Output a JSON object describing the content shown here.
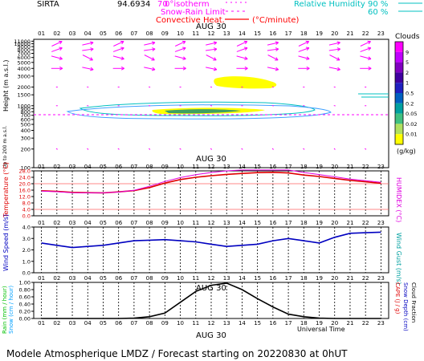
{
  "header": {
    "station": "SIRTA",
    "coords": "94.6934",
    "isotherm_value": "70",
    "legend_isotherm": "0°isotherm",
    "legend_snow_rain": "Snow-Rain Limit",
    "legend_convective": "Convective Heat.",
    "legend_convective_unit": "(°C/minute)",
    "legend_rh": "Relative Humidity",
    "rh_90": "90 %",
    "rh_60": "60 %",
    "date": "AUG 30"
  },
  "footer": {
    "text": "Modele Atmospherique LMDZ / Forecast starting on 20220830 at 0hUT",
    "universal_time": "Universal Time",
    "date_bottom": "AUG 30"
  },
  "colors": {
    "temperature": "#e00000",
    "humidex": "#e000e0",
    "wind": "#0000c0",
    "rain": "#000000",
    "clouds_title": "#000000",
    "wind_arrows": "#ff00ff"
  },
  "chart_data": [
    {
      "type": "heatmap",
      "panel": "clouds",
      "title": "Clouds",
      "ylabel": "Height (m a.s.l.)",
      "ylabel_lower": "Up to 200 m a.s.l.",
      "unit": "(g/kg)",
      "x_labels": [
        "01",
        "02",
        "03",
        "04",
        "05",
        "06",
        "07",
        "08",
        "09",
        "10",
        "11",
        "12",
        "13",
        "14",
        "15",
        "16",
        "17",
        "18",
        "19",
        "20",
        "21",
        "22",
        "23"
      ],
      "y_ticks": [
        100,
        200,
        300,
        400,
        500,
        600,
        700,
        800,
        900,
        1000,
        1500,
        2000,
        3000,
        4000,
        5000,
        6000,
        7000,
        8000,
        9000,
        10000,
        11000
      ],
      "y_tick_labels": [
        "100",
        "200",
        "300",
        "400",
        "500",
        "600",
        "700",
        "800",
        "900",
        "1000",
        "1500",
        "2000",
        "3000",
        "4000",
        "5000",
        "6000",
        "7000",
        "8000",
        "9000",
        "10000",
        "11000"
      ],
      "colorbar_labels": [
        "9",
        "5",
        "2",
        "1",
        "0.5",
        "0.2",
        "0.05",
        "0.02",
        "0.01"
      ],
      "colorbar_colors": [
        "#ff00ff",
        "#c000ff",
        "#8000c0",
        "#4000a0",
        "#2020c0",
        "#0060c0",
        "#00a0a0",
        "#40c080",
        "#b0e060",
        "#ffff00"
      ]
    },
    {
      "type": "line",
      "panel": "temperature",
      "ylabel": "Temperature (°C)",
      "y2label": "HUMIDEX (°C)",
      "x": [
        1,
        2,
        3,
        4,
        5,
        6,
        7,
        8,
        9,
        10,
        11,
        12,
        13,
        14,
        15,
        16,
        17,
        18,
        19,
        20,
        21,
        22,
        23
      ],
      "x_labels": [
        "01",
        "02",
        "03",
        "04",
        "05",
        "06",
        "07",
        "08",
        "09",
        "10",
        "11",
        "12",
        "13",
        "14",
        "15",
        "16",
        "17",
        "18",
        "19",
        "20",
        "21",
        "22",
        "23"
      ],
      "ylim": [
        0.0,
        28.0
      ],
      "y_tick_labels": [
        "0.0",
        "4.0",
        "8.0",
        "12.0",
        "16.0",
        "20.0",
        "24.0",
        "28.0"
      ],
      "series": [
        {
          "name": "Temperature",
          "values": [
            15.6,
            15.2,
            14.6,
            14.4,
            14.3,
            14.9,
            15.7,
            17.6,
            20.4,
            22.6,
            24.0,
            25.0,
            25.8,
            26.4,
            26.9,
            27.1,
            26.7,
            25.4,
            24.5,
            23.3,
            22.1,
            21.2,
            20.3
          ]
        },
        {
          "name": "HUMIDEX",
          "values": [
            15.4,
            15.0,
            14.4,
            14.3,
            14.3,
            14.8,
            15.9,
            18.4,
            21.4,
            23.8,
            25.6,
            27.0,
            28.0,
            28.6,
            29.0,
            29.2,
            28.6,
            27.0,
            25.7,
            24.3,
            22.9,
            21.9,
            20.9
          ]
        }
      ]
    },
    {
      "type": "line",
      "panel": "wind",
      "ylabel": "Wind Speed (m/s)",
      "y2label": "Wind Gust (m/s)",
      "x": [
        1,
        2,
        3,
        4,
        5,
        6,
        7,
        8,
        9,
        10,
        11,
        12,
        13,
        14,
        15,
        16,
        17,
        18,
        19,
        20,
        21,
        22,
        23
      ],
      "x_labels": [
        "01",
        "02",
        "03",
        "04",
        "05",
        "06",
        "07",
        "08",
        "09",
        "10",
        "11",
        "12",
        "13",
        "14",
        "15",
        "16",
        "17",
        "18",
        "19",
        "20",
        "21",
        "22",
        "23"
      ],
      "ylim": [
        0.0,
        4.0
      ],
      "y_tick_labels": [
        "0.0",
        "1.0",
        "2.0",
        "3.0",
        "4.0"
      ],
      "series": [
        {
          "name": "Wind Speed",
          "values": [
            2.6,
            2.4,
            2.2,
            2.3,
            2.4,
            2.6,
            2.8,
            2.85,
            2.9,
            2.8,
            2.7,
            2.5,
            2.3,
            2.4,
            2.5,
            2.8,
            3.0,
            2.8,
            2.6,
            3.1,
            3.45,
            3.5,
            3.55
          ]
        }
      ]
    },
    {
      "type": "line",
      "panel": "rain",
      "ylabel": "Rain (mm / hour)",
      "ylabel2": "Snow (cm / hour)",
      "y2label": "CAPE (J / g)",
      "y3label": "Snow Depth (cm)",
      "y4label": "Cloud Fraction",
      "x": [
        1,
        2,
        3,
        4,
        5,
        6,
        7,
        8,
        9,
        10,
        11,
        12,
        13,
        14,
        15,
        16,
        17,
        18,
        19,
        20,
        21,
        22,
        23
      ],
      "x_labels": [
        "01",
        "02",
        "03",
        "04",
        "05",
        "06",
        "07",
        "08",
        "09",
        "10",
        "11",
        "12",
        "13",
        "14",
        "15",
        "16",
        "17",
        "18",
        "19",
        "20",
        "21",
        "22",
        "23"
      ],
      "ylim": [
        0.0,
        1.0
      ],
      "y_tick_labels": [
        "0.00",
        "0.20",
        "0.40",
        "0.60",
        "0.80",
        "1.00"
      ],
      "series": [
        {
          "name": "CAPE",
          "values": [
            0.0,
            0.0,
            0.0,
            0.0,
            0.0,
            0.0,
            0.01,
            0.05,
            0.15,
            0.45,
            0.75,
            0.92,
            0.98,
            0.8,
            0.55,
            0.32,
            0.12,
            0.05,
            0.01,
            0.0,
            0.0,
            0.0,
            0.0
          ]
        }
      ]
    }
  ]
}
